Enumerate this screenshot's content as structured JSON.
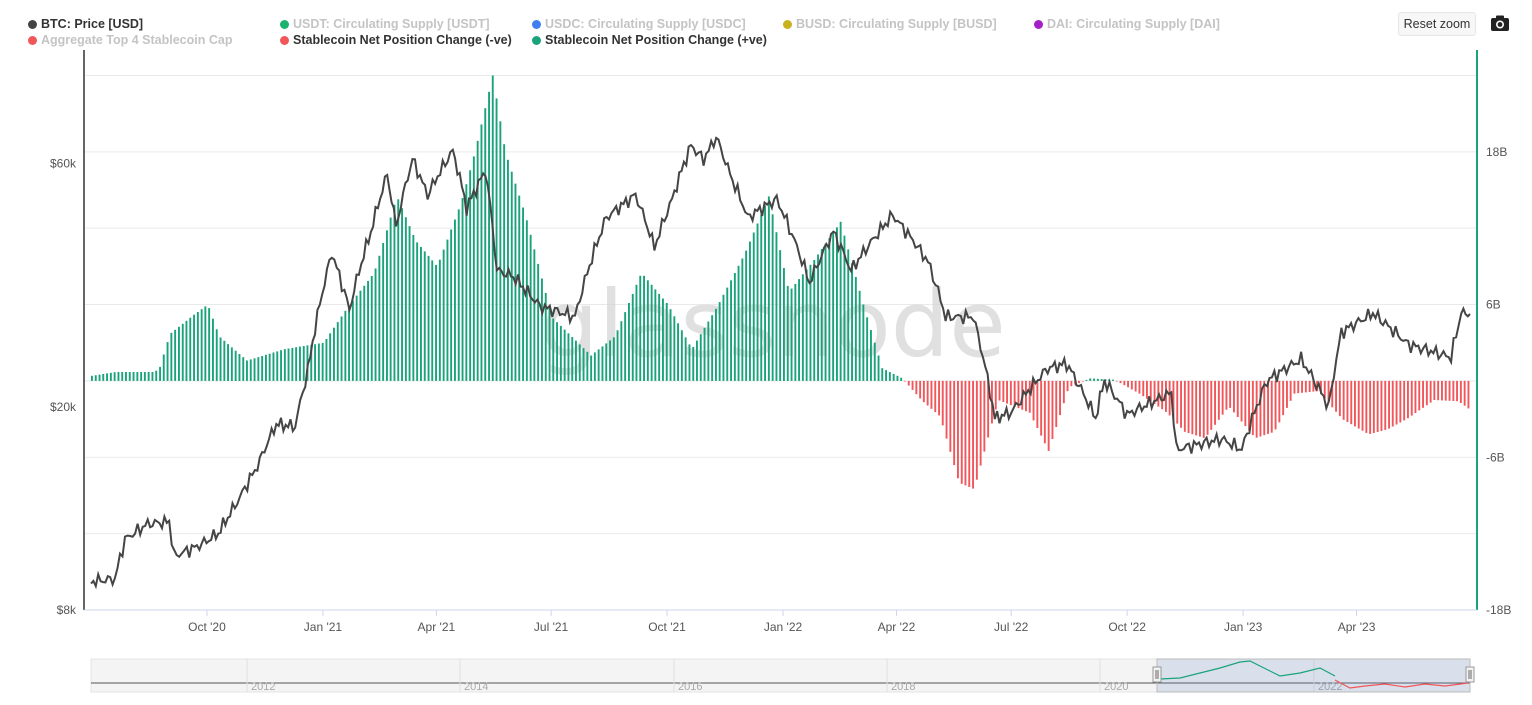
{
  "legend": [
    {
      "label": "BTC: Price [USD]",
      "color": "#444444",
      "active": true
    },
    {
      "label": "USDT: Circulating Supply [USDT]",
      "color": "#1bb36e",
      "active": false
    },
    {
      "label": "USDC: Circulating Supply [USDC]",
      "color": "#3d7fef",
      "active": false
    },
    {
      "label": "BUSD: Circulating Supply [BUSD]",
      "color": "#c8b21e",
      "active": false
    },
    {
      "label": "DAI: Circulating Supply [DAI]",
      "color": "#a51fc7",
      "active": false
    },
    {
      "label": "Aggregate Top 4 Stablecoin Cap",
      "color": "#f0565a",
      "active": false
    },
    {
      "label": "Stablecoin Net Position Change (-ve)",
      "color": "#f0565a",
      "active": true
    },
    {
      "label": "Stablecoin Net Position Change (+ve)",
      "color": "#1aa37a",
      "active": true
    }
  ],
  "toolbar": {
    "reset_zoom_label": "Reset zoom",
    "camera_icon": "camera-icon"
  },
  "watermark": "glassnode",
  "chart_data": {
    "type": "bar+line",
    "x_ticks": [
      "Oct '20",
      "Jan '21",
      "Apr '21",
      "Jul '21",
      "Oct '21",
      "Jan '22",
      "Apr '22",
      "Jul '22",
      "Oct '22",
      "Jan '23",
      "Apr '23"
    ],
    "x_range": [
      "2020-07-01",
      "2023-06-30"
    ],
    "left_axis": {
      "scale": "log",
      "ticks": [
        "$8k",
        "$20k",
        "$60k"
      ],
      "range": [
        8000,
        100000
      ]
    },
    "right_axis": {
      "scale": "linear",
      "ticks": [
        "18B",
        "6B",
        "-6B",
        "-18B"
      ],
      "range": [
        -18,
        26
      ],
      "unit": "B"
    },
    "btc_price": {
      "name": "BTC: Price [USD]",
      "points": [
        [
          "2020-07-01",
          9100
        ],
        [
          "2020-07-20",
          9200
        ],
        [
          "2020-07-28",
          11000
        ],
        [
          "2020-08-15",
          11800
        ],
        [
          "2020-09-01",
          11900
        ],
        [
          "2020-09-05",
          10200
        ],
        [
          "2020-09-25",
          10700
        ],
        [
          "2020-10-10",
          11300
        ],
        [
          "2020-10-25",
          13000
        ],
        [
          "2020-11-10",
          15300
        ],
        [
          "2020-11-25",
          18500
        ],
        [
          "2020-12-10",
          18300
        ],
        [
          "2020-12-20",
          23500
        ],
        [
          "2021-01-08",
          40000
        ],
        [
          "2021-01-22",
          31000
        ],
        [
          "2021-02-08",
          44000
        ],
        [
          "2021-02-21",
          57000
        ],
        [
          "2021-02-28",
          45000
        ],
        [
          "2021-03-13",
          61000
        ],
        [
          "2021-03-25",
          52000
        ],
        [
          "2021-04-14",
          63500
        ],
        [
          "2021-04-25",
          49000
        ],
        [
          "2021-05-10",
          58000
        ],
        [
          "2021-05-19",
          37000
        ],
        [
          "2021-06-01",
          36000
        ],
        [
          "2021-06-22",
          31500
        ],
        [
          "2021-07-20",
          30000
        ],
        [
          "2021-08-14",
          47000
        ],
        [
          "2021-09-06",
          52000
        ],
        [
          "2021-09-21",
          41000
        ],
        [
          "2021-10-05",
          51000
        ],
        [
          "2021-10-20",
          65000
        ],
        [
          "2021-10-30",
          61000
        ],
        [
          "2021-11-09",
          67500
        ],
        [
          "2021-11-20",
          57000
        ],
        [
          "2021-12-04",
          47000
        ],
        [
          "2021-12-27",
          51000
        ],
        [
          "2022-01-22",
          35000
        ],
        [
          "2022-02-10",
          44000
        ],
        [
          "2022-02-24",
          37000
        ],
        [
          "2022-03-29",
          47500
        ],
        [
          "2022-04-26",
          38500
        ],
        [
          "2022-05-10",
          30000
        ],
        [
          "2022-06-01",
          30000
        ],
        [
          "2022-06-18",
          19000
        ],
        [
          "2022-07-01",
          19500
        ],
        [
          "2022-07-30",
          23800
        ],
        [
          "2022-08-14",
          24300
        ],
        [
          "2022-09-06",
          19000
        ],
        [
          "2022-09-13",
          22500
        ],
        [
          "2022-10-01",
          19300
        ],
        [
          "2022-11-05",
          21300
        ],
        [
          "2022-11-09",
          16500
        ],
        [
          "2022-12-15",
          17300
        ],
        [
          "2022-12-31",
          16500
        ],
        [
          "2023-01-20",
          22500
        ],
        [
          "2023-02-16",
          24800
        ],
        [
          "2023-03-10",
          20000
        ],
        [
          "2023-03-20",
          28000
        ],
        [
          "2023-04-14",
          30500
        ],
        [
          "2023-05-12",
          26500
        ],
        [
          "2023-06-15",
          25000
        ],
        [
          "2023-06-23",
          30500
        ],
        [
          "2023-06-30",
          30400
        ]
      ]
    },
    "net_position_change": {
      "unit": "B",
      "points": [
        [
          "2020-07-01",
          0.4
        ],
        [
          "2020-07-20",
          0.7
        ],
        [
          "2020-08-20",
          0.7
        ],
        [
          "2020-08-24",
          1.1
        ],
        [
          "2020-09-01",
          3.7
        ],
        [
          "2020-09-20",
          5.2
        ],
        [
          "2020-10-01",
          6.0
        ],
        [
          "2020-10-10",
          3.5
        ],
        [
          "2020-11-01",
          1.6
        ],
        [
          "2020-12-01",
          2.5
        ],
        [
          "2021-01-01",
          3.0
        ],
        [
          "2021-01-20",
          5.8
        ],
        [
          "2021-02-10",
          8.5
        ],
        [
          "2021-02-28",
          14.5
        ],
        [
          "2021-03-15",
          11.0
        ],
        [
          "2021-04-01",
          9.0
        ],
        [
          "2021-04-20",
          14.0
        ],
        [
          "2021-05-01",
          18.0
        ],
        [
          "2021-05-15",
          24.0
        ],
        [
          "2021-05-25",
          18.0
        ],
        [
          "2021-06-10",
          13.0
        ],
        [
          "2021-07-01",
          5.0
        ],
        [
          "2021-08-01",
          2.0
        ],
        [
          "2021-08-20",
          3.5
        ],
        [
          "2021-09-10",
          8.5
        ],
        [
          "2021-10-01",
          6.0
        ],
        [
          "2021-10-20",
          2.5
        ],
        [
          "2021-11-10",
          6.0
        ],
        [
          "2021-12-01",
          10.0
        ],
        [
          "2021-12-20",
          14.5
        ],
        [
          "2022-01-05",
          7.0
        ],
        [
          "2022-01-25",
          9.5
        ],
        [
          "2022-02-15",
          12.5
        ],
        [
          "2022-03-05",
          6.0
        ],
        [
          "2022-03-20",
          1.0
        ],
        [
          "2022-04-05",
          0.2
        ],
        [
          "2022-04-20",
          -1.5
        ],
        [
          "2022-05-05",
          -2.8
        ],
        [
          "2022-05-20",
          -8.0
        ],
        [
          "2022-06-01",
          -8.5
        ],
        [
          "2022-06-20",
          -1.5
        ],
        [
          "2022-07-15",
          -2.5
        ],
        [
          "2022-07-30",
          -5.5
        ],
        [
          "2022-08-15",
          -0.5
        ],
        [
          "2022-09-01",
          0.2
        ],
        [
          "2022-09-20",
          0.1
        ],
        [
          "2022-10-10",
          -1.0
        ],
        [
          "2022-11-01",
          -2.5
        ],
        [
          "2022-11-15",
          -4.0
        ],
        [
          "2022-12-01",
          -4.5
        ],
        [
          "2022-12-20",
          -2.0
        ],
        [
          "2023-01-10",
          -4.5
        ],
        [
          "2023-01-25",
          -4.0
        ],
        [
          "2023-02-10",
          -1.0
        ],
        [
          "2023-03-01",
          -0.8
        ],
        [
          "2023-03-20",
          -3.0
        ],
        [
          "2023-04-10",
          -4.2
        ],
        [
          "2023-04-25",
          -3.8
        ],
        [
          "2023-05-10",
          -3.0
        ],
        [
          "2023-06-01",
          -1.5
        ],
        [
          "2023-06-20",
          -1.6
        ],
        [
          "2023-06-30",
          -2.3
        ]
      ]
    },
    "navigator_ticks": [
      "2012",
      "2014",
      "2016",
      "2018",
      "2020",
      "2022"
    ]
  }
}
